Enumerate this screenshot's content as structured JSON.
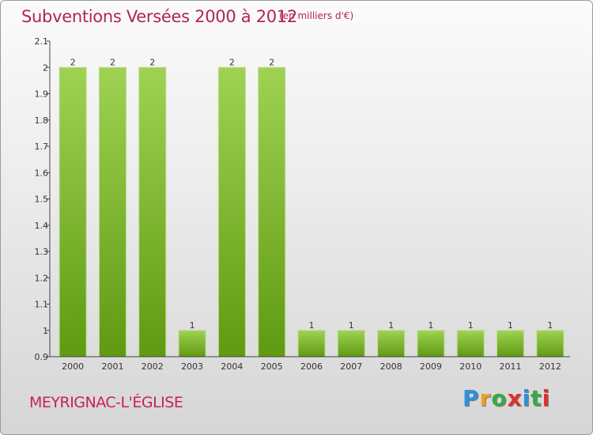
{
  "header": {
    "title": "Subventions Versées 2000 à 2012",
    "unit_note": "(en milliers d'€)"
  },
  "footer": {
    "commune": "MEYRIGNAC-L'ÉGLISE",
    "logo_letters": [
      "P",
      "r",
      "o",
      "x",
      "i",
      "t",
      "i"
    ],
    "logo_colors": [
      "#2f8fd8",
      "#f0a020",
      "#39a845",
      "#e03030",
      "#2f8fd8",
      "#39a845",
      "#e03030"
    ]
  },
  "colors": {
    "bar_light": "#9fd253",
    "bar_dark": "#5f9a12",
    "axis": "#444444",
    "title": "#b0245a"
  },
  "chart_data": {
    "type": "bar",
    "categories": [
      "2000",
      "2001",
      "2002",
      "2003",
      "2004",
      "2005",
      "2006",
      "2007",
      "2008",
      "2009",
      "2010",
      "2011",
      "2012"
    ],
    "values": [
      2,
      2,
      2,
      1,
      2,
      2,
      1,
      1,
      1,
      1,
      1,
      1,
      1
    ],
    "data_labels": [
      "2",
      "2",
      "2",
      "1",
      "2",
      "2",
      "1",
      "1",
      "1",
      "1",
      "1",
      "1",
      "1"
    ],
    "yticks": [
      "0.9",
      "1",
      "1.1",
      "1.2",
      "1.3",
      "1.4",
      "1.5",
      "1.6",
      "1.7",
      "1.8",
      "1.9",
      "2",
      "2.1"
    ],
    "ylim": [
      0.9,
      2.1
    ],
    "grid": false
  }
}
